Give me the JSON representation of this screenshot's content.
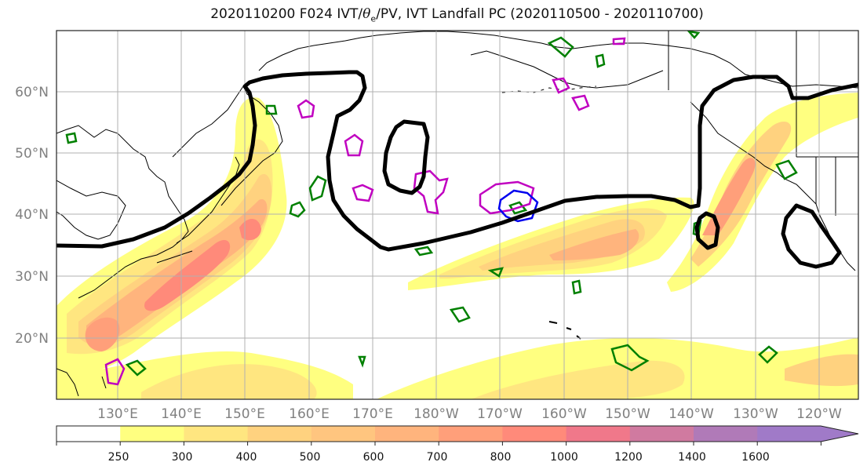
{
  "title": {
    "prefix": "2020110200 F024 IVT/",
    "theta_symbol": "θ",
    "theta_sub": "e",
    "suffix": "/PV, IVT Landfall PC (2020110500 - 2020110700)"
  },
  "lat_labels": [
    "60°N",
    "50°N",
    "40°N",
    "30°N",
    "20°N"
  ],
  "lon_labels": [
    "130°E",
    "140°E",
    "150°E",
    "160°E",
    "170°E",
    "180°W",
    "170°W",
    "160°W",
    "150°W",
    "140°W",
    "130°W",
    "120°W"
  ],
  "colorbar": {
    "tick_labels": [
      "250",
      "300",
      "400",
      "500",
      "600",
      "700",
      "800",
      "1000",
      "1200",
      "1400",
      "1600"
    ],
    "colors": [
      "#ffffff",
      "#ffff80",
      "#ffe680",
      "#ffd27f",
      "#ffc57f",
      "#ffb47d",
      "#ff9f7a",
      "#ff8a7a",
      "#f0788a",
      "#d07aa0",
      "#b07ab8",
      "#a07ac8"
    ]
  },
  "legend_colors": {
    "ivt_landfall_pc": "#000000",
    "theta_e": "#008000",
    "pv_magenta": "#c000c0",
    "pv_blue": "#0000ee"
  }
}
